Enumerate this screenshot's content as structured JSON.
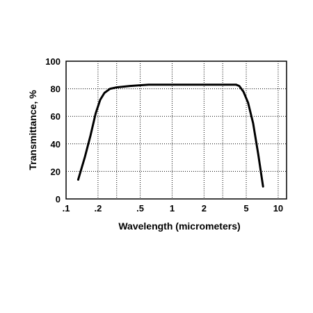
{
  "chart_data": {
    "type": "line",
    "title": "",
    "xlabel": "Wavelength (micrometers)",
    "ylabel": "Transmittance, %",
    "xscale": "log",
    "xlim": [
      0.1,
      12
    ],
    "ylim": [
      0,
      100
    ],
    "grid": true,
    "x_ticks": [
      {
        "value": 0.1,
        "label": ".1"
      },
      {
        "value": 0.2,
        "label": ".2"
      },
      {
        "value": 0.5,
        "label": ".5"
      },
      {
        "value": 1,
        "label": "1"
      },
      {
        "value": 2,
        "label": "2"
      },
      {
        "value": 5,
        "label": "5"
      },
      {
        "value": 10,
        "label": "10"
      }
    ],
    "x_gridlines": [
      0.1,
      0.2,
      0.3,
      0.5,
      1,
      2,
      3,
      5,
      10
    ],
    "y_ticks": [
      {
        "value": 0,
        "label": "0"
      },
      {
        "value": 20,
        "label": "20"
      },
      {
        "value": 40,
        "label": "40"
      },
      {
        "value": 60,
        "label": "60"
      },
      {
        "value": 80,
        "label": "80"
      },
      {
        "value": 100,
        "label": "100"
      }
    ],
    "series": [
      {
        "color": "#000000",
        "x": [
          0.13,
          0.15,
          0.17,
          0.19,
          0.21,
          0.23,
          0.26,
          0.3,
          0.4,
          0.6,
          1,
          2,
          3,
          4,
          4.3,
          4.7,
          5.2,
          5.8,
          6.5,
          7.2
        ],
        "y": [
          14,
          30,
          46,
          62,
          72,
          77,
          80,
          81,
          82,
          83,
          83,
          83,
          83,
          83,
          82,
          78,
          70,
          55,
          32,
          9
        ]
      }
    ]
  }
}
